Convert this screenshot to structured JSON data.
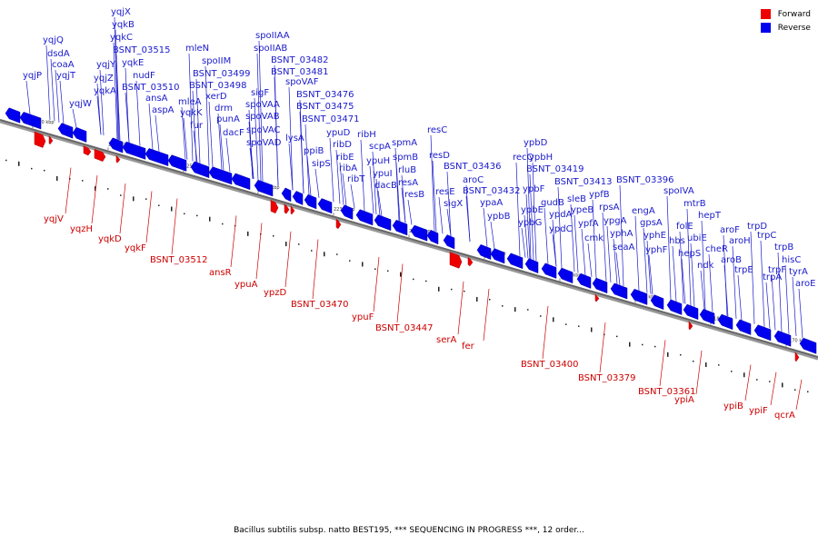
{
  "legend": [
    {
      "label": "Forward",
      "color": "#ee0000"
    },
    {
      "label": "Reverse",
      "color": "#0000ee"
    }
  ],
  "caption": "Bacillus subtilis subsp. natto BEST195, *** SEQUENCING IN PROGRESS ***, 12 order...",
  "colors": {
    "forward": "#ee0000",
    "reverse": "#0000ee",
    "line_forward": "#cc0000",
    "line_reverse": "#1a1acc",
    "backbone": "#666666"
  },
  "scale": {
    "start_kbp": 2274,
    "end_kbp": 2167,
    "ticks": [
      "2270 kbp",
      "2260 kbp",
      "2250 kbp",
      "2240 kbp",
      "2230 kbp",
      "2220 kbp",
      "2210 kbp",
      "2200 kbp",
      "2190 kbp",
      "2180 kbp",
      "2170 kbp"
    ]
  },
  "reverse_genes": [
    "yqjP",
    "yqjQ",
    "dsdA",
    "coaA",
    "yqjT",
    "yqjW",
    "yqjX",
    "yqjY",
    "yqjZ",
    "yqkA",
    "yqkB",
    "yqkC",
    "BSNT_03515",
    "yqkE",
    "nudF",
    "BSNT_03510",
    "ansA",
    "aspA",
    "mleA",
    "yqkK",
    "fur",
    "mleN",
    "spoIIM",
    "BSNT_03499",
    "BSNT_03498",
    "xerD",
    "drm",
    "punA",
    "dacF",
    "spoIIAA",
    "spoIIAB",
    "sigF",
    "spoVAA",
    "spoVAB",
    "spoVAC",
    "spoVAD",
    "BSNT_03482",
    "BSNT_03481",
    "spoVAF",
    "lysA",
    "BSNT_03476",
    "BSNT_03475",
    "BSNT_03471",
    "ppiB",
    "ypuD",
    "sipS",
    "ribD",
    "ribE",
    "ribA",
    "ribT",
    "ribH",
    "ypuH",
    "scpA",
    "ypuI",
    "spmA",
    "dacB",
    "spmB",
    "rluB",
    "resA",
    "resB",
    "resC",
    "resD",
    "resE",
    "BSNT_03436",
    "sigX",
    "aroC",
    "ypaA",
    "BSNT_03432",
    "ypbB",
    "ypbD",
    "recQ",
    "ypbH",
    "ypbF",
    "ypbE",
    "BSNT_03419",
    "ypbG",
    "gudB",
    "ypdA",
    "ypdC",
    "sleB",
    "BSNT_03413",
    "ypeB",
    "ypfA",
    "ypfB",
    "cmk",
    "rpsA",
    "ypgA",
    "yphA",
    "seaA",
    "engA",
    "BSNT_03396",
    "gpsA",
    "yphE",
    "yphF",
    "spoIVA",
    "hbs",
    "mtrB",
    "folE",
    "hepS",
    "ubiE",
    "hepT",
    "ndk",
    "cheR",
    "aroF",
    "aroB",
    "aroH",
    "trpE",
    "trpC",
    "trpD",
    "trpF",
    "trpB",
    "trpA",
    "hisC",
    "tyrA",
    "aroE"
  ],
  "forward_genes": [
    "yqjV",
    "yqzH",
    "yqkD",
    "yqkF",
    "BSNT_03512",
    "ansR",
    "ypuA",
    "ypzD",
    "BSNT_03470",
    "ypuF",
    "BSNT_03447",
    "serA",
    "fer",
    "BSNT_03400",
    "BSNT_03379",
    "BSNT_03361",
    "ypiA",
    "ypiB",
    "ypiF",
    "qcrA"
  ]
}
